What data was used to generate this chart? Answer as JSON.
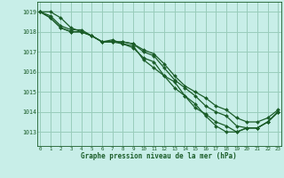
{
  "title": "Graphe pression niveau de la mer (hPa)",
  "bg_color": "#c8eee8",
  "grid_color": "#99ccbb",
  "line_color": "#1a5c28",
  "marker_color": "#1a5c28",
  "x_ticks": [
    0,
    1,
    2,
    3,
    4,
    5,
    6,
    7,
    8,
    9,
    10,
    11,
    12,
    13,
    14,
    15,
    16,
    17,
    18,
    19,
    20,
    21,
    22,
    23
  ],
  "y_ticks": [
    1013,
    1014,
    1015,
    1016,
    1017,
    1018,
    1019
  ],
  "ylim": [
    1012.3,
    1019.5
  ],
  "xlim": [
    -0.3,
    23.3
  ],
  "series": [
    [
      1019.0,
      1019.0,
      1018.7,
      1018.2,
      1018.0,
      1017.8,
      1017.5,
      1017.6,
      1017.4,
      1017.3,
      1016.6,
      1016.2,
      1015.8,
      1015.5,
      1014.8,
      1014.4,
      1013.8,
      1013.3,
      1013.0,
      1013.0,
      1013.2,
      1013.2,
      1013.5,
      1014.0
    ],
    [
      1019.0,
      1018.7,
      1018.2,
      1018.0,
      1018.0,
      1017.8,
      1017.5,
      1017.5,
      1017.4,
      1017.2,
      1016.7,
      1016.5,
      1015.8,
      1015.2,
      1014.8,
      1014.2,
      1013.9,
      1013.5,
      1013.3,
      1013.0,
      1013.2,
      1013.2,
      1013.5,
      1014.0
    ],
    [
      1019.0,
      1018.7,
      1018.2,
      1018.0,
      1018.0,
      1017.8,
      1017.5,
      1017.5,
      1017.5,
      1017.4,
      1017.0,
      1016.8,
      1016.2,
      1015.6,
      1015.2,
      1014.8,
      1014.3,
      1014.0,
      1013.8,
      1013.3,
      1013.2,
      1013.2,
      1013.5,
      1014.0
    ],
    [
      1019.0,
      1018.8,
      1018.3,
      1018.1,
      1018.1,
      1017.8,
      1017.5,
      1017.5,
      1017.5,
      1017.4,
      1017.1,
      1016.9,
      1016.4,
      1015.8,
      1015.3,
      1015.0,
      1014.7,
      1014.3,
      1014.1,
      1013.7,
      1013.5,
      1013.5,
      1013.7,
      1014.1
    ]
  ]
}
